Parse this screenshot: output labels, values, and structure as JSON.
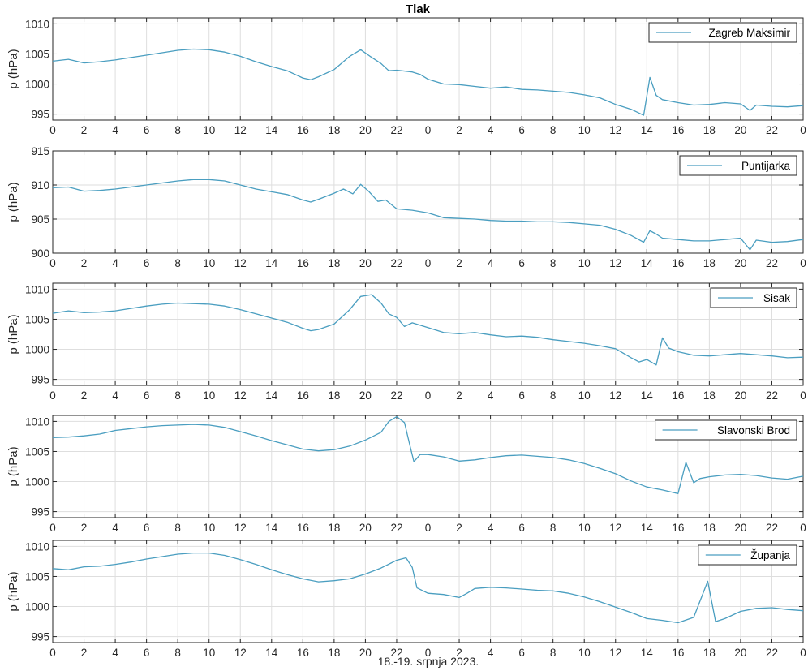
{
  "chart_data": {
    "type": "line",
    "title": "Tlak",
    "xlabel": "18.-19. srpnja 2023.",
    "x_tick_labels": [
      "0",
      "2",
      "4",
      "6",
      "8",
      "10",
      "12",
      "14",
      "16",
      "18",
      "20",
      "22",
      "0",
      "2",
      "4",
      "6",
      "8",
      "10",
      "12",
      "14",
      "16",
      "18",
      "20",
      "22",
      "0"
    ],
    "x_range_hours": [
      0,
      48
    ],
    "grid": true,
    "legend_placement": "top-right",
    "line_color": "#4a9ec0",
    "panels": [
      {
        "name": "Zagreb Maksimir",
        "ylabel": "p (hPa)",
        "ylim": [
          994,
          1011
        ],
        "yticks": [
          995,
          1000,
          1005,
          1010
        ],
        "points": [
          [
            0,
            1003.8
          ],
          [
            1,
            1004.1
          ],
          [
            2,
            1003.5
          ],
          [
            3,
            1003.7
          ],
          [
            4,
            1004.0
          ],
          [
            5,
            1004.4
          ],
          [
            6,
            1004.8
          ],
          [
            7,
            1005.2
          ],
          [
            8,
            1005.6
          ],
          [
            9,
            1005.8
          ],
          [
            10,
            1005.7
          ],
          [
            11,
            1005.3
          ],
          [
            12,
            1004.6
          ],
          [
            13,
            1003.7
          ],
          [
            14,
            1002.9
          ],
          [
            15,
            1002.2
          ],
          [
            16,
            1001.0
          ],
          [
            16.5,
            1000.7
          ],
          [
            17,
            1001.2
          ],
          [
            18,
            1002.4
          ],
          [
            19,
            1004.6
          ],
          [
            19.7,
            1005.7
          ],
          [
            20.3,
            1004.6
          ],
          [
            21,
            1003.4
          ],
          [
            21.5,
            1002.2
          ],
          [
            22,
            1002.3
          ],
          [
            23,
            1002.0
          ],
          [
            23.5,
            1001.6
          ],
          [
            24,
            1000.8
          ],
          [
            25,
            1000.0
          ],
          [
            26,
            999.9
          ],
          [
            27,
            999.6
          ],
          [
            28,
            999.3
          ],
          [
            29,
            999.5
          ],
          [
            30,
            999.1
          ],
          [
            31,
            999.0
          ],
          [
            32,
            998.8
          ],
          [
            33,
            998.6
          ],
          [
            34,
            998.2
          ],
          [
            35,
            997.7
          ],
          [
            36,
            996.6
          ],
          [
            37,
            995.8
          ],
          [
            37.8,
            994.8
          ],
          [
            38.2,
            1001.1
          ],
          [
            38.6,
            998.1
          ],
          [
            39,
            997.4
          ],
          [
            40,
            996.9
          ],
          [
            41,
            996.5
          ],
          [
            42,
            996.6
          ],
          [
            43,
            996.9
          ],
          [
            44,
            996.7
          ],
          [
            44.6,
            995.6
          ],
          [
            45,
            996.5
          ],
          [
            46,
            996.3
          ],
          [
            47,
            996.2
          ],
          [
            48,
            996.4
          ]
        ]
      },
      {
        "name": "Puntijarka",
        "ylabel": "p (hPa)",
        "ylim": [
          900,
          915
        ],
        "yticks": [
          900,
          905,
          910,
          915
        ],
        "points": [
          [
            0,
            909.6
          ],
          [
            1,
            909.7
          ],
          [
            2,
            909.1
          ],
          [
            3,
            909.2
          ],
          [
            4,
            909.4
          ],
          [
            5,
            909.7
          ],
          [
            6,
            910.0
          ],
          [
            7,
            910.3
          ],
          [
            8,
            910.6
          ],
          [
            9,
            910.8
          ],
          [
            10,
            910.8
          ],
          [
            11,
            910.6
          ],
          [
            12,
            910.0
          ],
          [
            13,
            909.4
          ],
          [
            14,
            909.0
          ],
          [
            15,
            908.6
          ],
          [
            16,
            907.8
          ],
          [
            16.5,
            907.5
          ],
          [
            17,
            907.9
          ],
          [
            18,
            908.8
          ],
          [
            18.6,
            909.4
          ],
          [
            19.2,
            908.7
          ],
          [
            19.7,
            910.1
          ],
          [
            20.2,
            909.1
          ],
          [
            20.8,
            907.6
          ],
          [
            21.3,
            907.8
          ],
          [
            22,
            906.5
          ],
          [
            23,
            906.3
          ],
          [
            24,
            905.9
          ],
          [
            25,
            905.2
          ],
          [
            26,
            905.1
          ],
          [
            27,
            905.0
          ],
          [
            28,
            904.8
          ],
          [
            29,
            904.7
          ],
          [
            30,
            904.7
          ],
          [
            31,
            904.6
          ],
          [
            32,
            904.6
          ],
          [
            33,
            904.5
          ],
          [
            34,
            904.3
          ],
          [
            35,
            904.1
          ],
          [
            36,
            903.5
          ],
          [
            37,
            902.6
          ],
          [
            37.8,
            901.6
          ],
          [
            38.2,
            903.3
          ],
          [
            38.6,
            902.8
          ],
          [
            39,
            902.2
          ],
          [
            40,
            902.0
          ],
          [
            41,
            901.8
          ],
          [
            42,
            901.8
          ],
          [
            43,
            902.0
          ],
          [
            44,
            902.2
          ],
          [
            44.6,
            900.5
          ],
          [
            45,
            901.9
          ],
          [
            46,
            901.6
          ],
          [
            47,
            901.7
          ],
          [
            48,
            902.0
          ]
        ]
      },
      {
        "name": "Sisak",
        "ylabel": "p (hPa)",
        "ylim": [
          994,
          1011
        ],
        "yticks": [
          995,
          1000,
          1005,
          1010
        ],
        "points": [
          [
            0,
            1006.0
          ],
          [
            1,
            1006.4
          ],
          [
            2,
            1006.1
          ],
          [
            3,
            1006.2
          ],
          [
            4,
            1006.4
          ],
          [
            5,
            1006.8
          ],
          [
            6,
            1007.2
          ],
          [
            7,
            1007.5
          ],
          [
            8,
            1007.7
          ],
          [
            9,
            1007.6
          ],
          [
            10,
            1007.5
          ],
          [
            11,
            1007.2
          ],
          [
            12,
            1006.6
          ],
          [
            13,
            1005.9
          ],
          [
            14,
            1005.2
          ],
          [
            15,
            1004.5
          ],
          [
            16,
            1003.5
          ],
          [
            16.5,
            1003.1
          ],
          [
            17,
            1003.3
          ],
          [
            18,
            1004.2
          ],
          [
            19,
            1006.6
          ],
          [
            19.7,
            1008.8
          ],
          [
            20.4,
            1009.1
          ],
          [
            21,
            1007.7
          ],
          [
            21.5,
            1005.9
          ],
          [
            22,
            1005.3
          ],
          [
            22.5,
            1003.8
          ],
          [
            23,
            1004.4
          ],
          [
            24,
            1003.6
          ],
          [
            25,
            1002.8
          ],
          [
            26,
            1002.6
          ],
          [
            27,
            1002.8
          ],
          [
            28,
            1002.4
          ],
          [
            29,
            1002.1
          ],
          [
            30,
            1002.2
          ],
          [
            31,
            1002.0
          ],
          [
            32,
            1001.6
          ],
          [
            33,
            1001.3
          ],
          [
            34,
            1001.0
          ],
          [
            35,
            1000.6
          ],
          [
            36,
            1000.1
          ],
          [
            37,
            998.6
          ],
          [
            37.5,
            997.9
          ],
          [
            38,
            998.3
          ],
          [
            38.6,
            997.4
          ],
          [
            39,
            1001.9
          ],
          [
            39.4,
            1000.2
          ],
          [
            40,
            999.6
          ],
          [
            41,
            999.0
          ],
          [
            42,
            998.9
          ],
          [
            43,
            999.1
          ],
          [
            44,
            999.3
          ],
          [
            45,
            999.1
          ],
          [
            46,
            998.9
          ],
          [
            47,
            998.6
          ],
          [
            48,
            998.7
          ]
        ]
      },
      {
        "name": "Slavonski Brod",
        "ylabel": "p (hPa)",
        "ylim": [
          994,
          1011
        ],
        "yticks": [
          995,
          1000,
          1005,
          1010
        ],
        "points": [
          [
            0,
            1007.3
          ],
          [
            1,
            1007.4
          ],
          [
            2,
            1007.6
          ],
          [
            3,
            1007.9
          ],
          [
            4,
            1008.5
          ],
          [
            5,
            1008.8
          ],
          [
            6,
            1009.1
          ],
          [
            7,
            1009.3
          ],
          [
            8,
            1009.4
          ],
          [
            9,
            1009.5
          ],
          [
            10,
            1009.4
          ],
          [
            11,
            1009.0
          ],
          [
            12,
            1008.3
          ],
          [
            13,
            1007.6
          ],
          [
            14,
            1006.8
          ],
          [
            15,
            1006.1
          ],
          [
            16,
            1005.4
          ],
          [
            17,
            1005.1
          ],
          [
            18,
            1005.3
          ],
          [
            19,
            1005.9
          ],
          [
            20,
            1006.9
          ],
          [
            21,
            1008.2
          ],
          [
            21.5,
            1010.0
          ],
          [
            22,
            1010.8
          ],
          [
            22.5,
            1009.8
          ],
          [
            22.8,
            1006.5
          ],
          [
            23.1,
            1003.3
          ],
          [
            23.5,
            1004.5
          ],
          [
            24,
            1004.5
          ],
          [
            25,
            1004.1
          ],
          [
            26,
            1003.4
          ],
          [
            27,
            1003.6
          ],
          [
            28,
            1004.0
          ],
          [
            29,
            1004.3
          ],
          [
            30,
            1004.4
          ],
          [
            31,
            1004.2
          ],
          [
            32,
            1004.0
          ],
          [
            33,
            1003.6
          ],
          [
            34,
            1003.0
          ],
          [
            35,
            1002.2
          ],
          [
            36,
            1001.3
          ],
          [
            37,
            1000.1
          ],
          [
            38,
            999.1
          ],
          [
            39,
            998.6
          ],
          [
            40,
            998.0
          ],
          [
            40.5,
            1003.2
          ],
          [
            41,
            999.8
          ],
          [
            41.4,
            1000.5
          ],
          [
            42,
            1000.8
          ],
          [
            43,
            1001.1
          ],
          [
            44,
            1001.2
          ],
          [
            45,
            1001.0
          ],
          [
            46,
            1000.6
          ],
          [
            47,
            1000.4
          ],
          [
            48,
            1000.9
          ]
        ]
      },
      {
        "name": "Županja",
        "ylabel": "p (hPa)",
        "ylim": [
          994,
          1011
        ],
        "yticks": [
          995,
          1000,
          1005,
          1010
        ],
        "points": [
          [
            0,
            1006.3
          ],
          [
            1,
            1006.1
          ],
          [
            2,
            1006.6
          ],
          [
            3,
            1006.7
          ],
          [
            4,
            1007.0
          ],
          [
            5,
            1007.4
          ],
          [
            6,
            1007.9
          ],
          [
            7,
            1008.3
          ],
          [
            8,
            1008.7
          ],
          [
            9,
            1008.9
          ],
          [
            10,
            1008.9
          ],
          [
            11,
            1008.5
          ],
          [
            12,
            1007.8
          ],
          [
            13,
            1007.0
          ],
          [
            14,
            1006.1
          ],
          [
            15,
            1005.3
          ],
          [
            16,
            1004.6
          ],
          [
            17,
            1004.1
          ],
          [
            18,
            1004.3
          ],
          [
            19,
            1004.6
          ],
          [
            20,
            1005.4
          ],
          [
            21,
            1006.4
          ],
          [
            22,
            1007.7
          ],
          [
            22.6,
            1008.1
          ],
          [
            23,
            1006.5
          ],
          [
            23.3,
            1003.1
          ],
          [
            24,
            1002.2
          ],
          [
            25,
            1002.0
          ],
          [
            26,
            1001.5
          ],
          [
            26.5,
            1002.2
          ],
          [
            27,
            1003.0
          ],
          [
            28,
            1003.2
          ],
          [
            29,
            1003.1
          ],
          [
            30,
            1002.9
          ],
          [
            31,
            1002.7
          ],
          [
            32,
            1002.6
          ],
          [
            33,
            1002.2
          ],
          [
            34,
            1001.6
          ],
          [
            35,
            1000.8
          ],
          [
            36,
            999.9
          ],
          [
            37,
            999.0
          ],
          [
            38,
            998.0
          ],
          [
            39,
            997.7
          ],
          [
            40,
            997.3
          ],
          [
            41,
            998.2
          ],
          [
            41.9,
            1004.2
          ],
          [
            42.4,
            997.5
          ],
          [
            43,
            998.0
          ],
          [
            44,
            999.2
          ],
          [
            45,
            999.7
          ],
          [
            46,
            999.8
          ],
          [
            47,
            999.5
          ],
          [
            48,
            999.3
          ]
        ]
      }
    ]
  }
}
